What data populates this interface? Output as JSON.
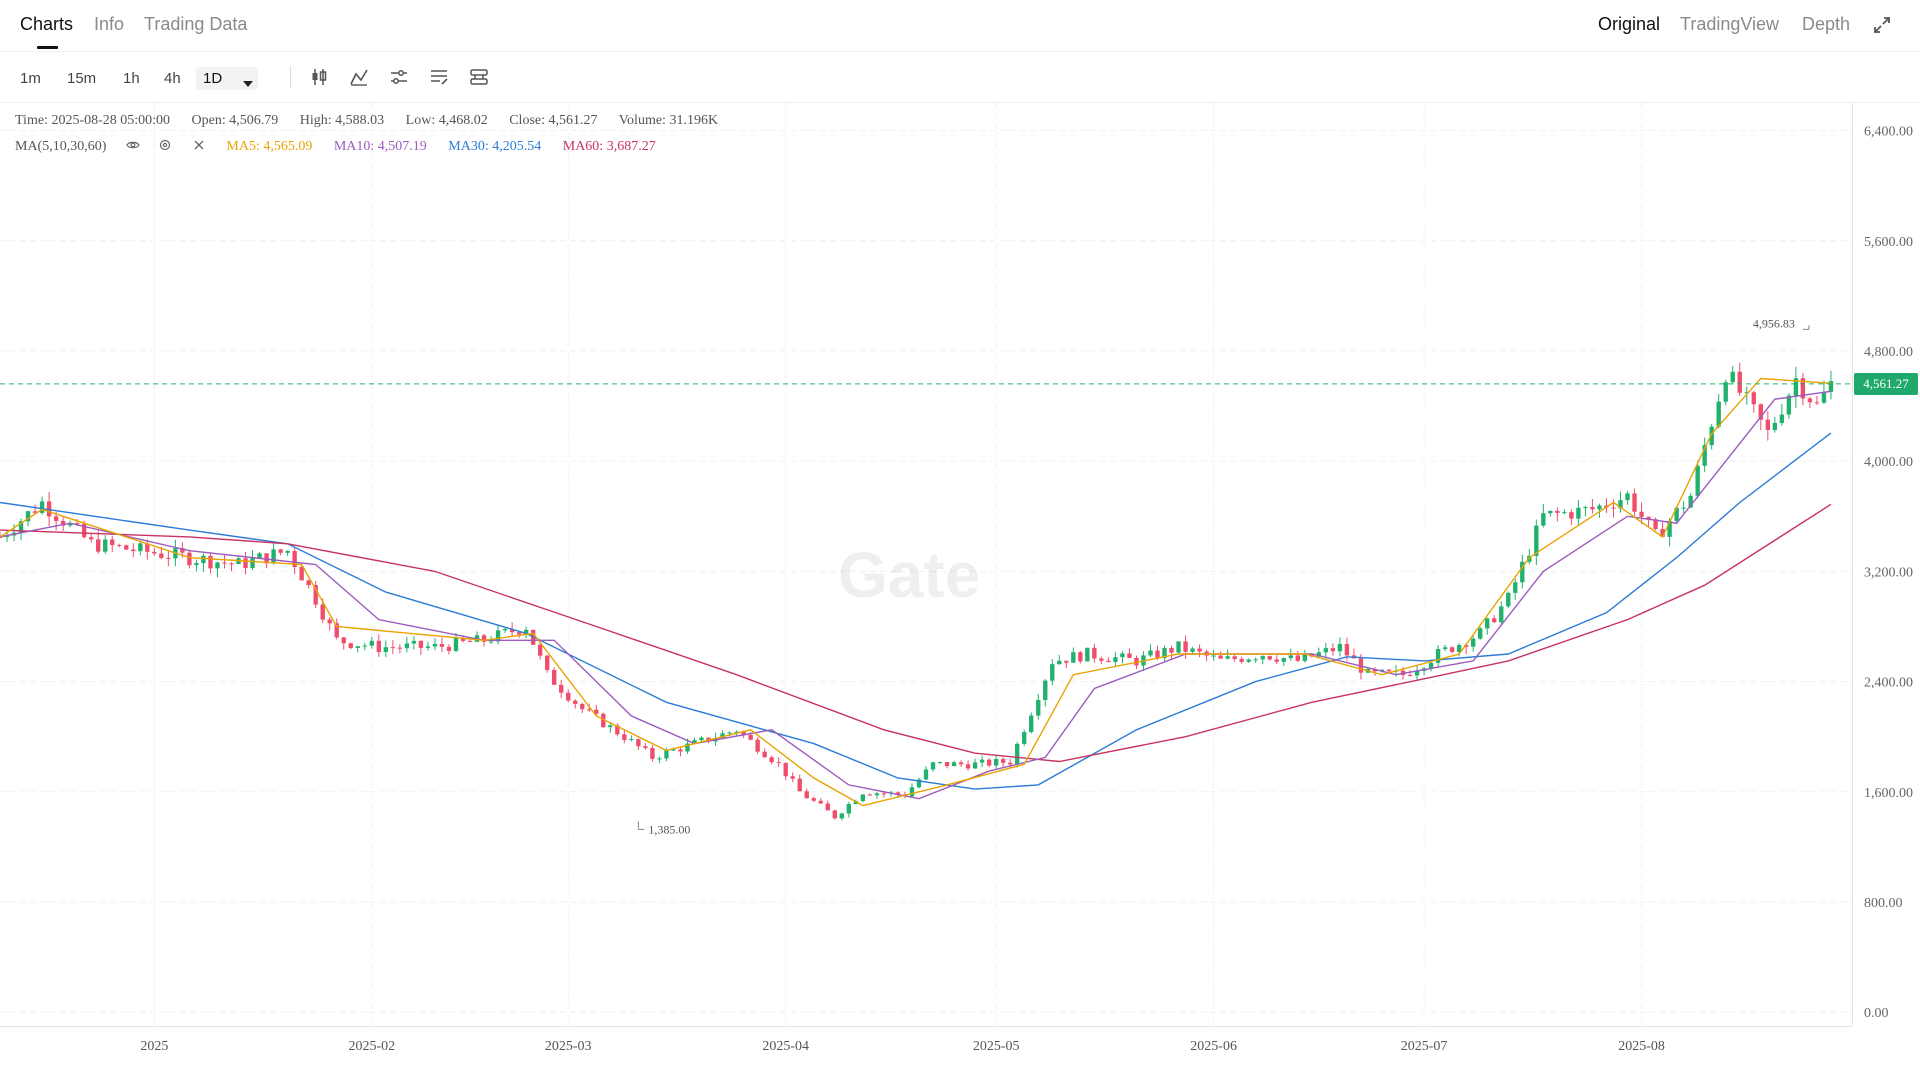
{
  "tabs": [
    {
      "label": "Charts",
      "active": true
    },
    {
      "label": "Info",
      "active": false
    },
    {
      "label": "Trading Data",
      "active": false
    }
  ],
  "views": [
    {
      "label": "Original",
      "active": true
    },
    {
      "label": "TradingView",
      "active": false
    },
    {
      "label": "Depth",
      "active": false
    }
  ],
  "intervals": [
    {
      "label": "1m",
      "active": false
    },
    {
      "label": "15m",
      "active": false
    },
    {
      "label": "1h",
      "active": false
    },
    {
      "label": "4h",
      "active": false
    },
    {
      "label": "1D",
      "active": true
    }
  ],
  "info": {
    "time": "Time: 2025-08-28 05:00:00",
    "open": "Open: 4,506.79",
    "high": "High: 4,588.03",
    "low": "Low: 4,468.02",
    "close": "Close: 4,561.27",
    "volume": "Volume: 31.196K"
  },
  "ma": {
    "label": "MA(5,10,30,60)",
    "ma5": "MA5: 4,565.09",
    "ma10": "MA10: 4,507.19",
    "ma30": "MA30: 4,205.54",
    "ma60": "MA60: 3,687.27"
  },
  "last_price": "4,561.27",
  "watermark": "Gate",
  "colors": {
    "up": "#20b26c",
    "down": "#ef4d6b",
    "ma5": "#e8a400",
    "ma10": "#9c5bbd",
    "ma30": "#2c7bd6",
    "ma60": "#c8335f",
    "last_price_line": "#20b26c"
  },
  "chart_data": {
    "type": "candlestick",
    "y_ticks": [
      0,
      800,
      1600,
      2400,
      3200,
      4000,
      4800,
      5600,
      6400
    ],
    "y_tick_labels": [
      "0.00",
      "800.00",
      "1,600.00",
      "2,400.00",
      "3,200.00",
      "4,000.00",
      "4,800.00",
      "5,600.00",
      "6,400.00"
    ],
    "ylim": [
      -100,
      6600
    ],
    "x_ticks": [
      "2025",
      "2025-02",
      "2025-03",
      "2025-04",
      "2025-05",
      "2025-06",
      "2025-07",
      "2025-08"
    ],
    "x_start": "2024-12-10",
    "x_end": "2025-08-31",
    "annotations": [
      {
        "label": "4,956.83",
        "value": 4956.83,
        "date": "2025-08-24"
      },
      {
        "label": "1,385.00",
        "value": 1385.0,
        "date": "2025-03-11"
      }
    ],
    "price_path": [
      [
        "2024-12-10",
        3450
      ],
      [
        "2024-12-16",
        3700
      ],
      [
        "2024-12-23",
        3400
      ],
      [
        "2024-12-30",
        3350
      ],
      [
        "2025-01-06",
        3300
      ],
      [
        "2025-01-13",
        3250
      ],
      [
        "2025-01-20",
        3350
      ],
      [
        "2025-01-24",
        3000
      ],
      [
        "2025-01-27",
        2700
      ],
      [
        "2025-02-02",
        2650
      ],
      [
        "2025-02-10",
        2650
      ],
      [
        "2025-02-17",
        2700
      ],
      [
        "2025-02-23",
        2800
      ],
      [
        "2025-02-26",
        2450
      ],
      [
        "2025-03-03",
        2200
      ],
      [
        "2025-03-09",
        2000
      ],
      [
        "2025-03-13",
        1850
      ],
      [
        "2025-03-19",
        1950
      ],
      [
        "2025-03-25",
        2050
      ],
      [
        "2025-03-31",
        1800
      ],
      [
        "2025-04-03",
        1600
      ],
      [
        "2025-04-08",
        1420
      ],
      [
        "2025-04-12",
        1600
      ],
      [
        "2025-04-18",
        1580
      ],
      [
        "2025-04-22",
        1800
      ],
      [
        "2025-04-28",
        1800
      ],
      [
        "2025-05-03",
        1820
      ],
      [
        "2025-05-09",
        2550
      ],
      [
        "2025-05-14",
        2600
      ],
      [
        "2025-05-21",
        2550
      ],
      [
        "2025-05-27",
        2650
      ],
      [
        "2025-06-02",
        2550
      ],
      [
        "2025-06-08",
        2600
      ],
      [
        "2025-06-13",
        2550
      ],
      [
        "2025-06-19",
        2650
      ],
      [
        "2025-06-23",
        2450
      ],
      [
        "2025-06-28",
        2450
      ],
      [
        "2025-07-03",
        2600
      ],
      [
        "2025-07-09",
        2750
      ],
      [
        "2025-07-13",
        3000
      ],
      [
        "2025-07-18",
        3600
      ],
      [
        "2025-07-25",
        3650
      ],
      [
        "2025-07-30",
        3750
      ],
      [
        "2025-08-03",
        3450
      ],
      [
        "2025-08-08",
        3750
      ],
      [
        "2025-08-13",
        4650
      ],
      [
        "2025-08-19",
        4200
      ],
      [
        "2025-08-23",
        4600
      ],
      [
        "2025-08-26",
        4400
      ],
      [
        "2025-08-28",
        4561
      ]
    ],
    "ma_series": [
      {
        "name": "MA30",
        "points": [
          [
            "2024-12-10",
            3700
          ],
          [
            "2025-01-06",
            3500
          ],
          [
            "2025-01-20",
            3400
          ],
          [
            "2025-02-03",
            3050
          ],
          [
            "2025-02-23",
            2750
          ],
          [
            "2025-03-15",
            2250
          ],
          [
            "2025-04-05",
            1950
          ],
          [
            "2025-04-17",
            1700
          ],
          [
            "2025-04-28",
            1620
          ],
          [
            "2025-05-07",
            1650
          ],
          [
            "2025-05-21",
            2050
          ],
          [
            "2025-06-07",
            2400
          ],
          [
            "2025-06-20",
            2580
          ],
          [
            "2025-07-01",
            2550
          ],
          [
            "2025-07-13",
            2600
          ],
          [
            "2025-07-27",
            2900
          ],
          [
            "2025-08-06",
            3300
          ],
          [
            "2025-08-15",
            3700
          ],
          [
            "2025-08-28",
            4205
          ]
        ]
      },
      {
        "name": "MA60",
        "points": [
          [
            "2024-12-10",
            3500
          ],
          [
            "2025-01-06",
            3450
          ],
          [
            "2025-01-20",
            3400
          ],
          [
            "2025-02-10",
            3200
          ],
          [
            "2025-03-05",
            2800
          ],
          [
            "2025-03-25",
            2450
          ],
          [
            "2025-04-15",
            2050
          ],
          [
            "2025-04-28",
            1880
          ],
          [
            "2025-05-10",
            1820
          ],
          [
            "2025-05-28",
            2000
          ],
          [
            "2025-06-15",
            2250
          ],
          [
            "2025-07-01",
            2420
          ],
          [
            "2025-07-13",
            2550
          ],
          [
            "2025-07-30",
            2850
          ],
          [
            "2025-08-10",
            3100
          ],
          [
            "2025-08-28",
            3687
          ]
        ]
      },
      {
        "name": "MA10",
        "points": [
          [
            "2024-12-10",
            3450
          ],
          [
            "2024-12-20",
            3550
          ],
          [
            "2025-01-06",
            3350
          ],
          [
            "2025-01-24",
            3250
          ],
          [
            "2025-02-02",
            2850
          ],
          [
            "2025-02-17",
            2700
          ],
          [
            "2025-02-27",
            2700
          ],
          [
            "2025-03-10",
            2150
          ],
          [
            "2025-03-19",
            1950
          ],
          [
            "2025-03-30",
            2050
          ],
          [
            "2025-04-10",
            1650
          ],
          [
            "2025-04-20",
            1550
          ],
          [
            "2025-04-30",
            1750
          ],
          [
            "2025-05-08",
            1850
          ],
          [
            "2025-05-15",
            2350
          ],
          [
            "2025-05-28",
            2600
          ],
          [
            "2025-06-15",
            2600
          ],
          [
            "2025-06-27",
            2450
          ],
          [
            "2025-07-08",
            2550
          ],
          [
            "2025-07-18",
            3200
          ],
          [
            "2025-07-30",
            3600
          ],
          [
            "2025-08-06",
            3550
          ],
          [
            "2025-08-13",
            4000
          ],
          [
            "2025-08-20",
            4450
          ],
          [
            "2025-08-28",
            4507
          ]
        ]
      },
      {
        "name": "MA5",
        "points": [
          [
            "2024-12-10",
            3450
          ],
          [
            "2024-12-16",
            3650
          ],
          [
            "2025-01-06",
            3300
          ],
          [
            "2025-01-22",
            3250
          ],
          [
            "2025-01-27",
            2800
          ],
          [
            "2025-02-17",
            2700
          ],
          [
            "2025-02-24",
            2750
          ],
          [
            "2025-03-05",
            2150
          ],
          [
            "2025-03-15",
            1900
          ],
          [
            "2025-03-27",
            2050
          ],
          [
            "2025-04-05",
            1700
          ],
          [
            "2025-04-12",
            1500
          ],
          [
            "2025-04-24",
            1650
          ],
          [
            "2025-05-05",
            1800
          ],
          [
            "2025-05-12",
            2450
          ],
          [
            "2025-05-27",
            2600
          ],
          [
            "2025-06-14",
            2600
          ],
          [
            "2025-06-25",
            2450
          ],
          [
            "2025-07-06",
            2600
          ],
          [
            "2025-07-16",
            3300
          ],
          [
            "2025-07-28",
            3700
          ],
          [
            "2025-08-04",
            3450
          ],
          [
            "2025-08-11",
            4200
          ],
          [
            "2025-08-18",
            4600
          ],
          [
            "2025-08-28",
            4565
          ]
        ]
      }
    ]
  }
}
